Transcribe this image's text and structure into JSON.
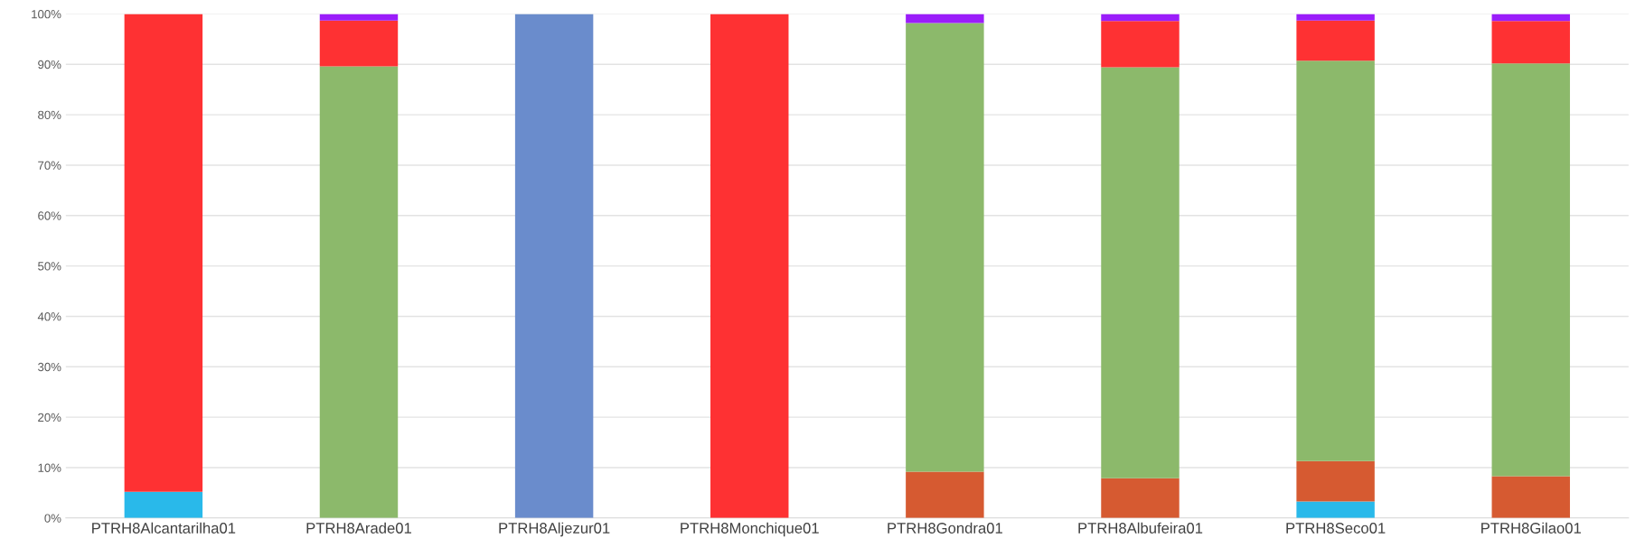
{
  "chart_data": {
    "type": "bar",
    "stacked": true,
    "categories": [
      "PTRH8Alcantarilha01",
      "PTRH8Arade01",
      "PTRH8Aljezur01",
      "PTRH8Monchique01",
      "PTRH8Gondra01",
      "PTRH8Albufeira01",
      "PTRH8Seco01",
      "PTRH8Gilao01"
    ],
    "series": [
      {
        "color": "#29b9ea",
        "values": [
          5.2,
          0,
          0,
          0,
          0,
          0,
          3.3,
          0
        ]
      },
      {
        "color": "#d65a31",
        "values": [
          0,
          0,
          0,
          0,
          9.2,
          7.9,
          8.0,
          8.3
        ]
      },
      {
        "color": "#8cb96b",
        "values": [
          0,
          89.6,
          0,
          0,
          89.0,
          81.5,
          79.4,
          81.9
        ]
      },
      {
        "color": "#6a8ccc",
        "values": [
          0,
          0,
          100,
          0,
          0,
          0,
          0,
          0
        ]
      },
      {
        "color": "#fe3133",
        "values": [
          94.8,
          9.1,
          0,
          100,
          0,
          9.2,
          8.0,
          8.4
        ]
      },
      {
        "color": "#9b1dfa",
        "values": [
          0,
          1.3,
          0,
          0,
          1.8,
          1.4,
          1.3,
          1.4
        ]
      }
    ],
    "ylim": [
      0,
      100
    ],
    "yticks": [
      {
        "value": 0,
        "label": "0%"
      },
      {
        "value": 10,
        "label": "10%"
      },
      {
        "value": 20,
        "label": "20%"
      },
      {
        "value": 30,
        "label": "30%"
      },
      {
        "value": 40,
        "label": "40%"
      },
      {
        "value": 50,
        "label": "50%"
      },
      {
        "value": 60,
        "label": "60%"
      },
      {
        "value": 70,
        "label": "70%"
      },
      {
        "value": 80,
        "label": "80%"
      },
      {
        "value": 90,
        "label": "90%"
      },
      {
        "value": 100,
        "label": "100%"
      }
    ],
    "grid": "y"
  }
}
